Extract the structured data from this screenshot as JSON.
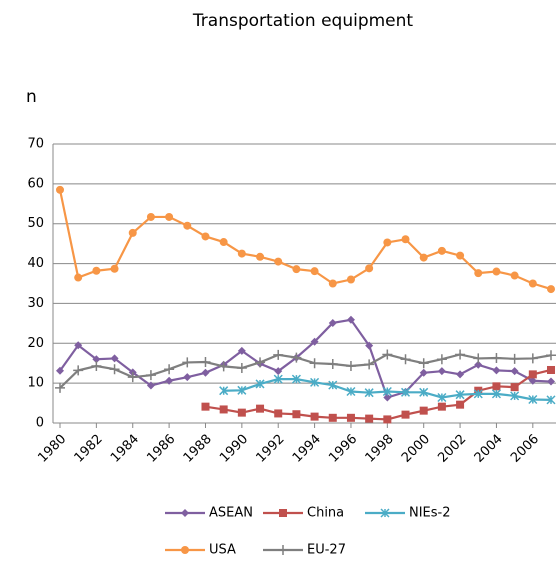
{
  "chart_data": {
    "type": "line",
    "title": "Transportation equipment",
    "annotation": "n",
    "x": [
      1980,
      1981,
      1982,
      1983,
      1984,
      1985,
      1986,
      1987,
      1988,
      1989,
      1990,
      1991,
      1992,
      1993,
      1994,
      1995,
      1996,
      1997,
      1998,
      1999,
      2000,
      2001,
      2002,
      2003,
      2004,
      2005,
      2006,
      2007
    ],
    "xlim": [
      1980,
      2007
    ],
    "xticks": [
      1980,
      1982,
      1984,
      1986,
      1988,
      1990,
      1992,
      1994,
      1996,
      1998,
      2000,
      2002,
      2004,
      2006
    ],
    "ylim": [
      0,
      70
    ],
    "yticks": [
      0,
      10,
      20,
      30,
      40,
      50,
      60,
      70
    ],
    "grid": true,
    "series": [
      {
        "name": "ASEAN",
        "color": "#7f5fa0",
        "marker": "diamond",
        "values": [
          13.1,
          19.5,
          16,
          16.2,
          12.7,
          9.4,
          10.6,
          11.5,
          12.6,
          14.6,
          18.1,
          14.9,
          13,
          16.4,
          20.4,
          25.1,
          25.9,
          19.4,
          6.4,
          7.8,
          12.6,
          13,
          12.2,
          14.6,
          13.2,
          13,
          10.6,
          10.4
        ]
      },
      {
        "name": "China",
        "color": "#c0504d",
        "marker": "square",
        "values": [
          null,
          null,
          null,
          null,
          null,
          null,
          null,
          null,
          4.1,
          3.4,
          2.6,
          3.6,
          2.4,
          2.2,
          1.6,
          1.3,
          1.3,
          1.1,
          0.9,
          2.1,
          3.1,
          4.1,
          4.6,
          8.1,
          9.2,
          9,
          12.2,
          13.3
        ]
      },
      {
        "name": "NIEs-2",
        "color": "#4bacc6",
        "marker": "star",
        "values": [
          null,
          null,
          null,
          null,
          null,
          null,
          null,
          null,
          null,
          8.1,
          8.2,
          9.8,
          11,
          11,
          10.2,
          9.5,
          7.9,
          7.6,
          7.9,
          7.7,
          7.7,
          6.4,
          7.1,
          7.3,
          7.3,
          6.8,
          5.9,
          5.8
        ]
      },
      {
        "name": "USA",
        "color": "#f79646",
        "marker": "circle",
        "values": [
          58.5,
          36.5,
          38.2,
          38.7,
          47.7,
          51.7,
          51.7,
          49.5,
          46.8,
          45.4,
          42.5,
          41.7,
          40.5,
          38.6,
          38.1,
          35,
          36,
          38.8,
          45.3,
          46.1,
          41.5,
          43.2,
          42,
          37.6,
          38,
          37,
          35,
          33.6
        ]
      },
      {
        "name": "EU-27",
        "color": "#7f7f7f",
        "marker": "plus",
        "values": [
          8.8,
          13.2,
          14.3,
          13.5,
          11.5,
          12,
          13.5,
          15.2,
          15.3,
          14.2,
          13.8,
          15.2,
          17.1,
          16.4,
          15,
          14.8,
          14.3,
          14.7,
          17.2,
          16,
          15,
          16,
          17.2,
          16.2,
          16.3,
          16.1,
          16.2,
          17
        ]
      }
    ]
  }
}
